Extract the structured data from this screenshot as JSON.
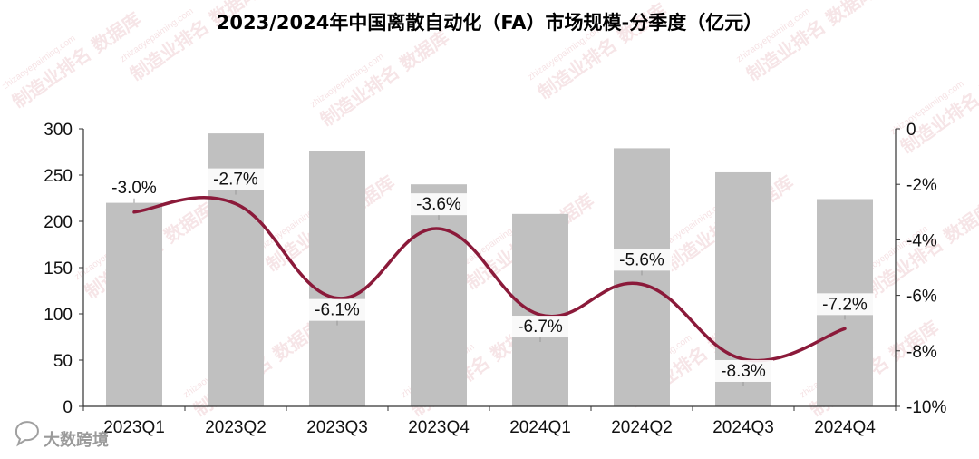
{
  "chart_data": {
    "type": "bar",
    "title": "2023/2024年中国离散自动化（FA）市场规模-分季度（亿元）",
    "categories": [
      "2023Q1",
      "2023Q2",
      "2023Q3",
      "2023Q4",
      "2024Q1",
      "2024Q2",
      "2024Q3",
      "2024Q4"
    ],
    "series": [
      {
        "type": "bar",
        "axis": "left",
        "color": "#c0c0c0",
        "values": [
          220,
          295,
          276,
          240,
          208,
          279,
          253,
          224
        ]
      },
      {
        "type": "line",
        "axis": "right",
        "color": "#8b1a3a",
        "values": [
          -3.0,
          -2.7,
          -6.1,
          -3.6,
          -6.7,
          -5.6,
          -8.3,
          -7.2
        ],
        "labels": [
          "-3.0%",
          "-2.7%",
          "-6.1%",
          "-3.6%",
          "-6.7%",
          "-5.6%",
          "-8.3%",
          "-7.2%"
        ]
      }
    ],
    "left_axis": {
      "ylim": [
        0,
        300
      ],
      "ticks": [
        "0",
        "50",
        "100",
        "150",
        "200",
        "250",
        "300"
      ]
    },
    "right_axis": {
      "ylim": [
        -10,
        0
      ],
      "ticks": [
        "0",
        "-2%",
        "-4%",
        "-6%",
        "-8%",
        "-10%"
      ]
    },
    "grid": false,
    "legend": "none"
  },
  "watermark": {
    "text": "制造业排名 数据库",
    "url": "zhizaoyepaiming.com"
  },
  "logo": {
    "text": "大数跨境",
    "icon": "chat-bubble-icon"
  }
}
